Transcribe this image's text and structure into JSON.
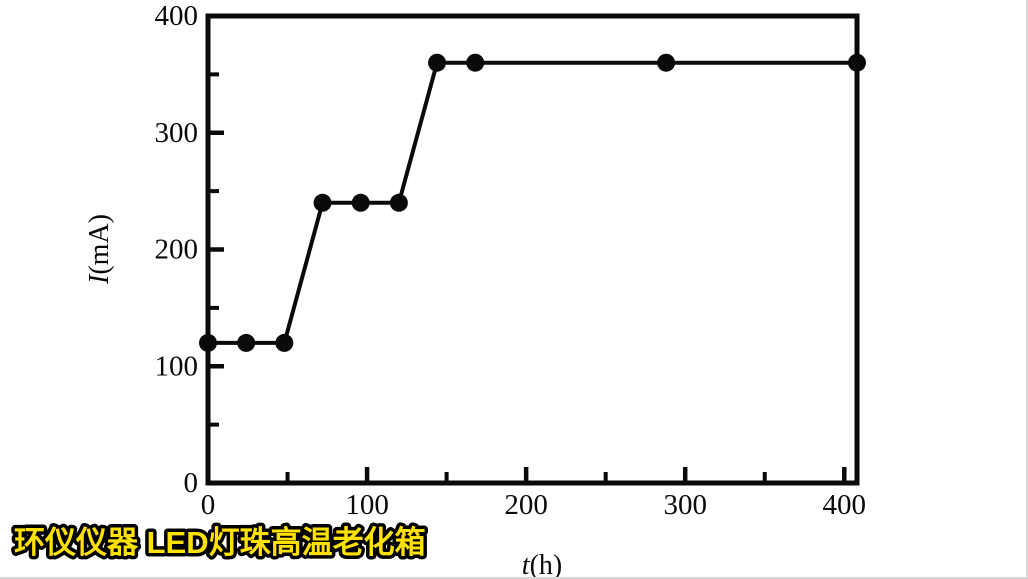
{
  "chart_data": {
    "type": "line",
    "title": "",
    "xlabel": "t(h)",
    "ylabel": "I(mA)",
    "x": [
      0,
      24,
      48,
      72,
      96,
      120,
      144,
      168,
      288,
      408
    ],
    "y": [
      120,
      120,
      120,
      240,
      240,
      240,
      360,
      360,
      360,
      360
    ],
    "xlim": [
      0,
      408
    ],
    "ylim": [
      0,
      400
    ],
    "x_ticks": [
      0,
      100,
      200,
      300,
      400
    ],
    "y_ticks": [
      0,
      100,
      200,
      300,
      400
    ],
    "minor_tick_step": 50,
    "grid": false,
    "legend": "none",
    "line_color": "#0a0a0a",
    "marker": "circle",
    "marker_color": "#0a0a0a"
  },
  "watermark": {
    "text": "环仪仪器 LED灯珠高温老化箱",
    "fill_color": "#ffe100",
    "outline_color": "#000000"
  }
}
